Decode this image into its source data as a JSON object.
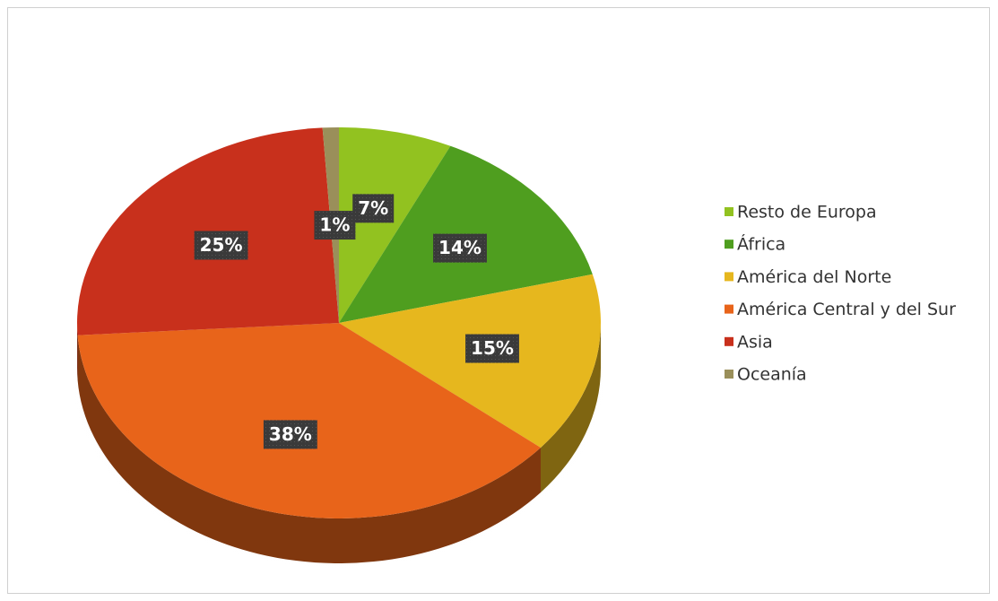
{
  "chart_data": {
    "type": "pie",
    "categories": [
      "Resto de Europa",
      "África",
      "América del Norte",
      "América Central y del Sur",
      "Asia",
      "Oceanía"
    ],
    "values": [
      7,
      14,
      15,
      38,
      25,
      1
    ],
    "value_labels": [
      "7%",
      "14%",
      "15%",
      "38%",
      "25%",
      "1%"
    ],
    "colors": [
      "#92c220",
      "#4f9e1f",
      "#e6b71e",
      "#e8641a",
      "#c8301c",
      "#9a8f5a"
    ],
    "legend": "right"
  }
}
